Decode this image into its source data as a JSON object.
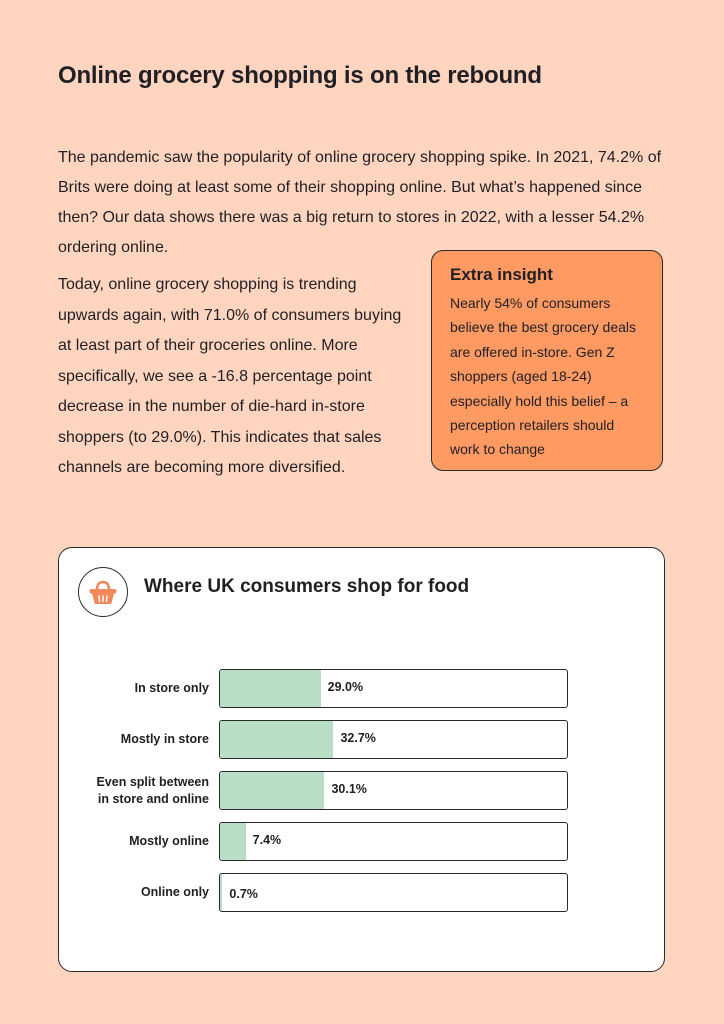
{
  "page": {
    "title": "Online grocery shopping is on the rebound",
    "intro": "The pandemic saw the popularity of online grocery shopping spike. In 2021, 74.2% of Brits were doing at least some of their shopping online. But what’s happened since then? Our data shows there was a big return to stores in 2022, with a lesser 54.2% ordering online.",
    "body": "Today, online grocery shopping is trending upwards again, with 71.0% of consumers buying at least part of their groceries online. More specifically, we see a -16.8 percentage point decrease in the number of die-hard in-store shoppers (to 29.0%). This indicates that sales channels are becoming more diversified."
  },
  "insight": {
    "title": "Extra insight",
    "text": "Nearly 54% of consumers believe the best grocery deals are offered in-store. Gen Z shoppers (aged 18-24) especially hold this belief – a perception retailers should work to change"
  },
  "colors": {
    "background": "#ffd5bf",
    "accent": "#ff9a62",
    "bar_fill": "#b9dec6",
    "icon": "#f2895a"
  },
  "chart_data": {
    "type": "bar",
    "orientation": "horizontal",
    "title": "Where UK consumers shop for food",
    "icon": "basket-icon",
    "categories": [
      "In store only",
      "Mostly in store",
      "Even split between in store and online",
      "Mostly online",
      "Online only"
    ],
    "category_lines": [
      [
        "In store only"
      ],
      [
        "Mostly in store"
      ],
      [
        "Even split between",
        "in store and online"
      ],
      [
        "Mostly online"
      ],
      [
        "Online only"
      ]
    ],
    "values": [
      29.0,
      32.7,
      30.1,
      7.4,
      0.7
    ],
    "value_labels": [
      "29.0%",
      "32.7%",
      "30.1%",
      "7.4%",
      "0.7%"
    ],
    "unit": "%",
    "xlim": [
      0,
      100
    ],
    "grid": false,
    "legend": "none"
  }
}
